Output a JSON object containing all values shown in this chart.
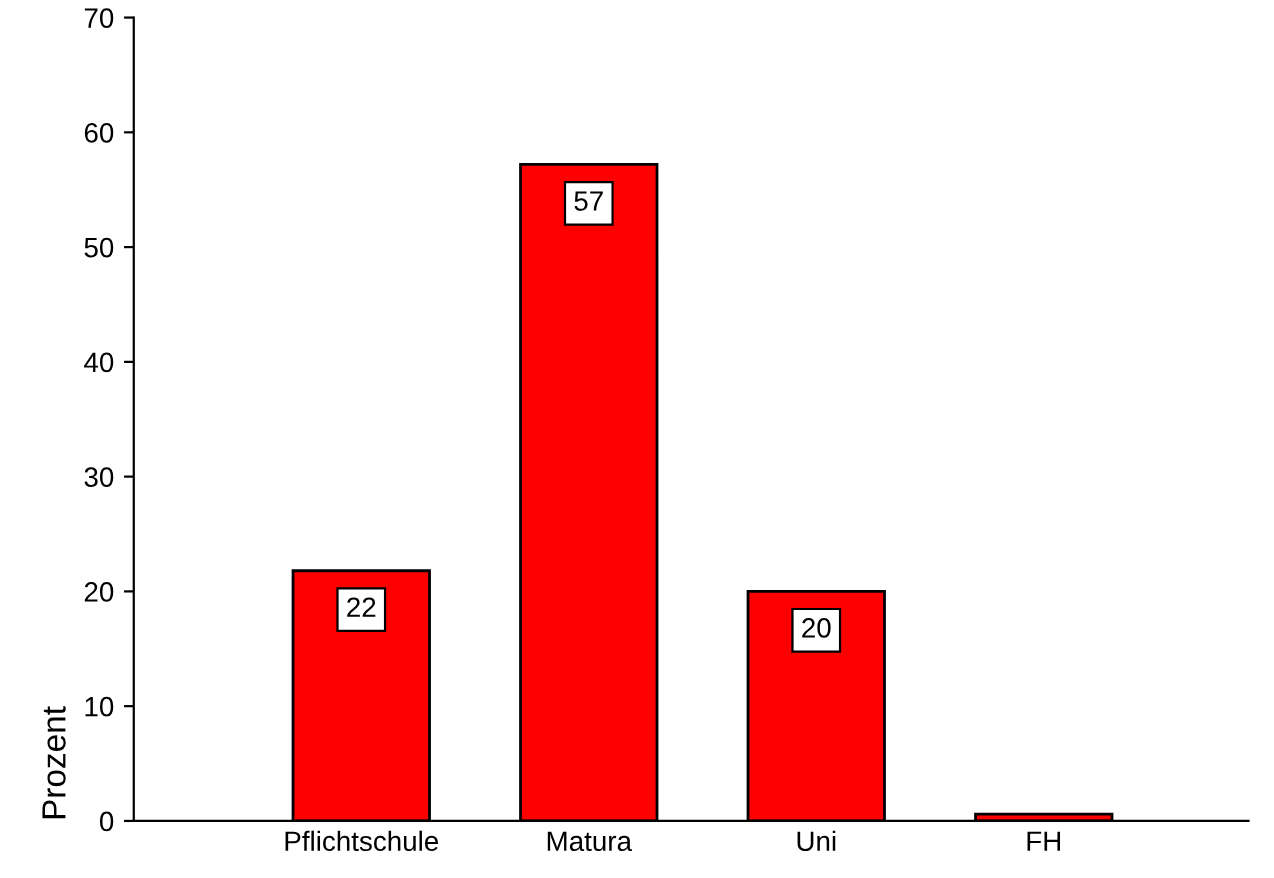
{
  "chart_data": {
    "type": "bar",
    "ylabel": "Prozent",
    "categories": [
      "Pflichtschule",
      "Matura",
      "Uni",
      "FH"
    ],
    "values": [
      21.8,
      57.2,
      20.0,
      0.6
    ],
    "value_labels": [
      "22",
      "57",
      "20",
      null
    ],
    "color": "#ff0000",
    "ylim": [
      0,
      70
    ],
    "yticks": [
      0,
      10,
      20,
      30,
      40,
      50,
      60,
      70
    ],
    "grid": false
  }
}
